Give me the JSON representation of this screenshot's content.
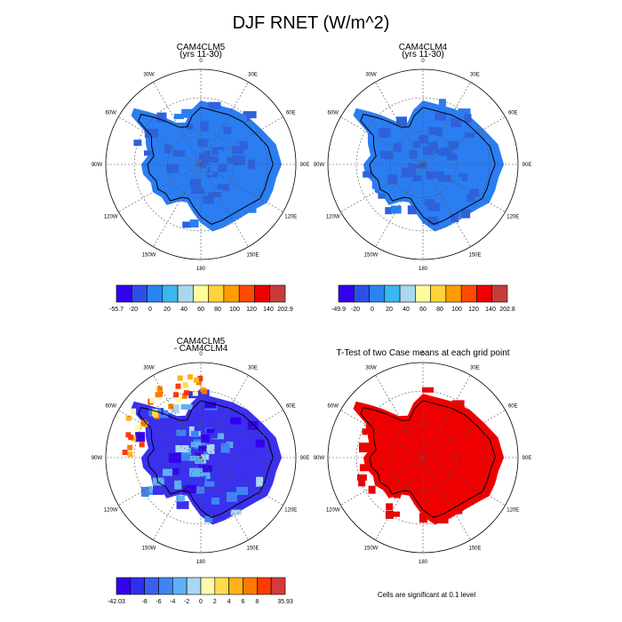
{
  "title": "DJF RNET (W/m^2)",
  "panels": [
    {
      "title_line1": "CAM4CLM5",
      "title_line2": "(yrs 11-30)",
      "colorbar": {
        "colors": [
          "#3300ee",
          "#2e4fe6",
          "#2a84f0",
          "#39b8f0",
          "#a7d8f0",
          "#fffb9c",
          "#ffd23a",
          "#ff9c00",
          "#ff4a00",
          "#ee0000",
          "#c93b3b"
        ],
        "labels": [
          "-55.7",
          "-20",
          "0",
          "20",
          "40",
          "60",
          "80",
          "100",
          "120",
          "140",
          "202.9"
        ]
      }
    },
    {
      "title_line1": "CAM4CLM4",
      "title_line2": "(yrs 11-30)",
      "colorbar": {
        "colors": [
          "#3300ee",
          "#2e4fe6",
          "#2a84f0",
          "#39b8f0",
          "#a7d8f0",
          "#fffb9c",
          "#ffd23a",
          "#ff9c00",
          "#ff4a00",
          "#ee0000",
          "#c93b3b"
        ],
        "labels": [
          "-49.9",
          "-20",
          "0",
          "20",
          "40",
          "60",
          "80",
          "100",
          "120",
          "140",
          "202.8"
        ]
      }
    },
    {
      "title_line1": "CAM4CLM5",
      "title_line2": "- CAM4CLM4",
      "colorbar": {
        "colors": [
          "#3300ee",
          "#2e30f0",
          "#3a5ff0",
          "#3f85f2",
          "#5fb0f5",
          "#a8d8f5",
          "#fff9a8",
          "#ffdc4a",
          "#ffb21a",
          "#ff7a00",
          "#ff3a00",
          "#d63a3a"
        ],
        "labels": [
          "-42.03",
          "",
          "-8",
          "-6",
          "-4",
          "-2",
          "0",
          "2",
          "4",
          "6",
          "8",
          "",
          "35.93"
        ]
      }
    },
    {
      "title_line1": "T-Test of two Case means at each grid point",
      "title_line2": "",
      "note": "Cells are significant at 0.1 level"
    }
  ],
  "longitude_labels": [
    "0",
    "30E",
    "60E",
    "90E",
    "120E",
    "150E",
    "180",
    "150W",
    "120W",
    "90W",
    "60W",
    "30W"
  ],
  "colors": {
    "base_field": "#2b7df2",
    "dark_cells": "#2d62dc",
    "diff_field": "#3a30ee",
    "significant": "#ee0000",
    "coast": "#000000",
    "grid": "#555555"
  },
  "chart_data": [
    {
      "type": "heatmap",
      "projection": "south-polar-stereographic",
      "title": "CAM4CLM5 (yrs 11-30)",
      "min": -55.7,
      "max": 202.9,
      "levels": [
        -20,
        0,
        20,
        40,
        60,
        80,
        100,
        120,
        140
      ]
    },
    {
      "type": "heatmap",
      "projection": "south-polar-stereographic",
      "title": "CAM4CLM4 (yrs 11-30)",
      "min": -49.9,
      "max": 202.8,
      "levels": [
        -20,
        0,
        20,
        40,
        60,
        80,
        100,
        120,
        140
      ]
    },
    {
      "type": "heatmap",
      "projection": "south-polar-stereographic",
      "title": "CAM4CLM5 - CAM4CLM4",
      "min": -42.03,
      "max": 35.93,
      "levels": [
        -8,
        -6,
        -4,
        -2,
        0,
        2,
        4,
        6,
        8
      ]
    },
    {
      "type": "heatmap",
      "projection": "south-polar-stereographic",
      "title": "T-Test of two Case means at each grid point",
      "significance_level": 0.1
    }
  ]
}
